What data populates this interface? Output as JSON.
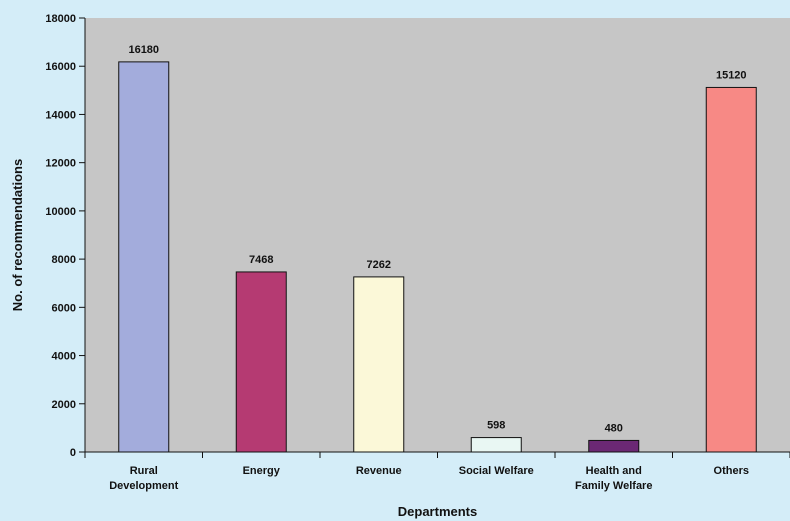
{
  "chart_data": {
    "type": "bar",
    "title": "",
    "xlabel": "Departments",
    "ylabel": "No. of recommendations",
    "ylim": [
      0,
      18000
    ],
    "yticks": [
      0,
      2000,
      4000,
      6000,
      8000,
      10000,
      12000,
      14000,
      16000,
      18000
    ],
    "grid": false,
    "categories": [
      [
        "Rural",
        "Development"
      ],
      [
        "Energy"
      ],
      [
        "Revenue"
      ],
      [
        "Social Welfare"
      ],
      [
        "Health and",
        "Family Welfare"
      ],
      [
        "Others"
      ]
    ],
    "values": [
      16180,
      7468,
      7262,
      598,
      480,
      15120
    ],
    "value_labels": [
      "16180",
      "7468",
      "7262",
      "598",
      "480",
      "15120"
    ],
    "bar_colors": [
      "#a3acdc",
      "#b53a72",
      "#fbf8d8",
      "#e9f7f3",
      "#6b2874",
      "#f78985"
    ]
  },
  "colors": {
    "page_background": "#d4edf8",
    "plot_background": "#c6c6c6",
    "bar_outline": "#111111"
  }
}
